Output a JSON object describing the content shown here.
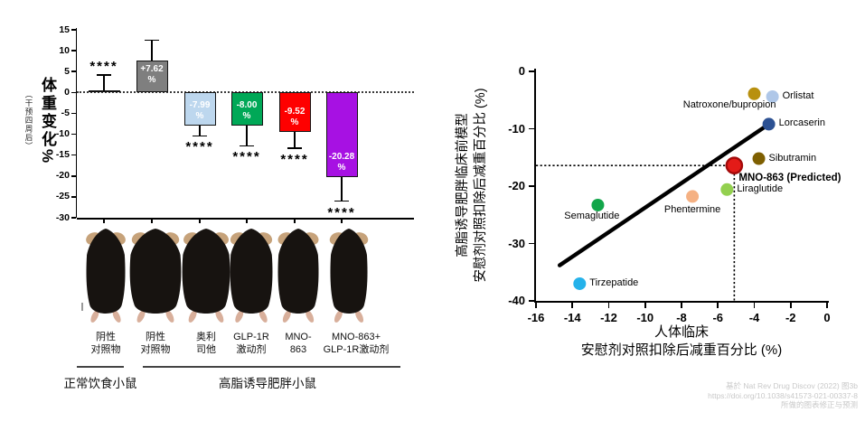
{
  "left_panel": {
    "y_axis_title": "体重变化%",
    "y_axis_note": "（干预四周后）",
    "groups": [
      {
        "label": "正常饮食小鼠"
      },
      {
        "label": "高脂诱导肥胖小鼠"
      }
    ],
    "mice_labels": [
      [
        "阴性",
        "对照物"
      ],
      [
        "阴性",
        "对照物"
      ],
      [
        "奥利",
        "司他"
      ],
      [
        "GLP-1R",
        "激动剂"
      ],
      [
        "MNO-",
        "863"
      ],
      [
        "MNO-863+",
        "GLP-1R激动剂"
      ]
    ]
  },
  "right_panel": {
    "y_axis_label_line1": "高脂诱导肥胖临床前模型",
    "y_axis_label_line2": "安慰剂对照扣除后减重百分比 (%)",
    "x_axis_label_line1": "人体临床",
    "x_axis_label_line2": "安慰剂对照扣除后减重百分比 (%)"
  },
  "footer": {
    "line1": "基於 Nat Rev Drug Discov (2022) 图3b",
    "line2": "https://doi.org/10.1038/s41573-021-00337-8",
    "line3": "所做的图表修正与预测"
  },
  "chart_data": [
    {
      "type": "bar",
      "title": "",
      "ylabel": "体重变化%",
      "ylabel_note": "（干预四周后）",
      "ylim": [
        -30,
        15
      ],
      "yticks": [
        15,
        10,
        5,
        0,
        -5,
        -10,
        -15,
        -20,
        -25,
        -30
      ],
      "grid": false,
      "zero_line": "dotted",
      "categories": [
        "阴性对照物",
        "阴性对照物",
        "奥利司他",
        "GLP-1R激动剂",
        "MNO-863",
        "MNO-863+GLP-1R激动剂"
      ],
      "values": [
        0.4,
        7.62,
        -7.99,
        -8.0,
        -9.52,
        -20.28
      ],
      "value_labels": [
        "",
        "+7.62",
        "-7.99",
        "-8.00",
        "-9.52",
        "-20.28"
      ],
      "value_label_unit": "%",
      "error_extents": [
        4.2,
        12.5,
        -10.4,
        -12.8,
        -13.4,
        -26.0
      ],
      "significance": [
        "****",
        "",
        "****",
        "****",
        "****",
        "****"
      ],
      "significance_side": [
        "above",
        "",
        "below",
        "below",
        "below",
        "below"
      ],
      "colors": [
        "#111111",
        "#7f7f7f",
        "#BDD7EE",
        "#00A857",
        "#FE0000",
        "#A711E3"
      ]
    },
    {
      "type": "scatter",
      "xlabel": "人体临床 安慰剂对照扣除后减重百分比 (%)",
      "ylabel": "高脂诱导肥胖临床前模型 安慰剂对照扣除后减重百分比 (%)",
      "xlim": [
        -16,
        0
      ],
      "ylim": [
        -40,
        0
      ],
      "xticks": [
        -16,
        -14,
        -12,
        -10,
        -8,
        -6,
        -4,
        -2,
        0
      ],
      "yticks": [
        0,
        -10,
        -20,
        -30,
        -40
      ],
      "grid": false,
      "points": [
        {
          "name": "Natroxone/bupropion",
          "x": -4.0,
          "y": -3.9,
          "color": "#B8900F",
          "label_side": "below-left",
          "bold": false,
          "highlight": false
        },
        {
          "name": "Orlistat",
          "x": -3.0,
          "y": -4.4,
          "color": "#AFC7E8",
          "label_side": "right",
          "bold": false,
          "highlight": false
        },
        {
          "name": "Lorcaserin",
          "x": -3.2,
          "y": -9.2,
          "color": "#2C5193",
          "label_side": "right",
          "bold": false,
          "highlight": false
        },
        {
          "name": "Sibutramin",
          "x": -3.75,
          "y": -15.2,
          "color": "#7E5F01",
          "label_side": "right",
          "bold": false,
          "highlight": false
        },
        {
          "name": "MNO-863 (Predicted)",
          "x": -5.1,
          "y": -16.4,
          "color": "#E31B18",
          "label_side": "below-right",
          "bold": true,
          "highlight": true
        },
        {
          "name": "Liraglutide",
          "x": -5.5,
          "y": -20.6,
          "color": "#93D04F",
          "label_side": "right",
          "bold": false,
          "highlight": false
        },
        {
          "name": "Phentermine",
          "x": -7.4,
          "y": -21.8,
          "color": "#F5B183",
          "label_side": "below",
          "bold": false,
          "highlight": false
        },
        {
          "name": "Semaglutide",
          "x": -12.6,
          "y": -23.3,
          "color": "#12A64A",
          "label_side": "below-left",
          "bold": false,
          "highlight": false
        },
        {
          "name": "Tirzepatide",
          "x": -13.6,
          "y": -37.0,
          "color": "#25B2EA",
          "label_side": "right",
          "bold": false,
          "highlight": false
        }
      ],
      "trend_line": {
        "x1": -14.7,
        "y1": -33.8,
        "x2": -3.2,
        "y2": -9.2
      },
      "reference_lines": {
        "x": -5.1,
        "y": -16.4,
        "style": "dotted"
      }
    }
  ]
}
